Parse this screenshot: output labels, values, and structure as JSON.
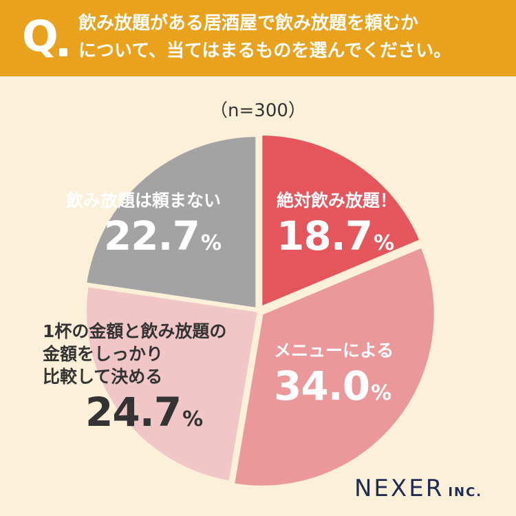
{
  "header": {
    "q_mark": "Q",
    "question_line1": "飲み放題がある居酒屋で飲み放題を頼むか",
    "question_line2": "について、当てはまるものを選んでください。"
  },
  "sample_size": "（n=300）",
  "chart_data": {
    "type": "pie",
    "title": "飲み放題がある居酒屋で飲み放題を頼むかについて、当てはまるものを選んでください。",
    "slices": [
      {
        "label": "絶対飲み放題！",
        "value": 18.7,
        "value_text": "18.7",
        "unit": "%",
        "color": "#e4555c",
        "text_color": "#ffffff"
      },
      {
        "label": "メニューによる",
        "value": 34.0,
        "value_text": "34.0",
        "unit": "%",
        "color": "#ea989a",
        "text_color": "#ffffff"
      },
      {
        "label": "1杯の金額と飲み放題の金額をしっかり比較して決める",
        "value": 24.7,
        "value_text": "24.7",
        "unit": "%",
        "color": "#f0c6c7",
        "text_color": "#333333"
      },
      {
        "label": "飲み放題は頼まない",
        "value": 22.7,
        "value_text": "22.7",
        "unit": "%",
        "color": "#a3a3a3",
        "text_color": "#ffffff"
      }
    ],
    "label_lines": [
      [
        "絶対飲み放題！"
      ],
      [
        "メニューによる"
      ],
      [
        "1杯の金額と飲み放題の",
        "金額をしっかり",
        "比較して決める"
      ],
      [
        "飲み放題は頼まない"
      ]
    ]
  },
  "logo": {
    "name": "NEXER",
    "suffix": "INC."
  },
  "colors": {
    "header": "#e9a21d",
    "background": "#fdf0d8",
    "separator": "#fdf0d8",
    "logo": "#1d2b52"
  }
}
